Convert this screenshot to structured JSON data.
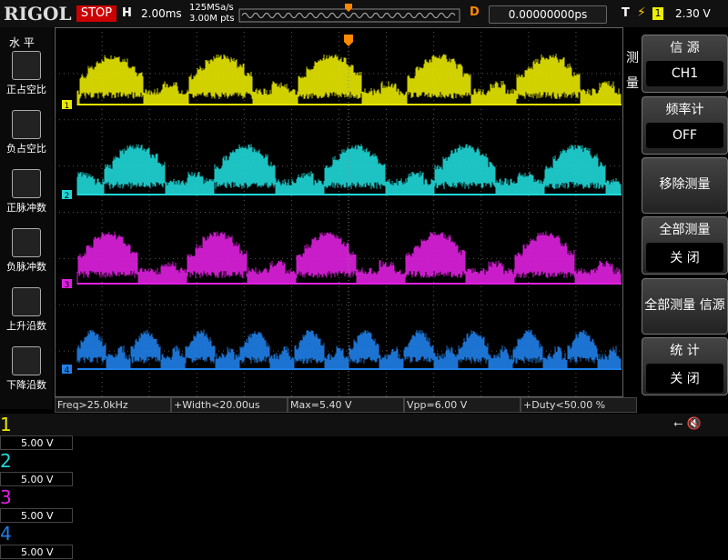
{
  "top_bar": {
    "logo": "RIGOL",
    "run_state": "STOP",
    "timebase_label": "H",
    "timebase": "2.00ms",
    "sample_rate": "125MSa/s",
    "memory_depth": "3.00M pts",
    "delay_label": "D",
    "delay": "0.00000000ps",
    "trigger_label": "T",
    "trigger_source": "1",
    "trigger_level": "2.30 V"
  },
  "left_menu": {
    "title": "水 平",
    "items": [
      "正占空比",
      "负占空比",
      "正脉冲数",
      "负脉冲数",
      "上升沿数",
      "下降沿数"
    ]
  },
  "right_menu": {
    "title": "测 量",
    "items": [
      {
        "label": "信 源",
        "value": "CH1"
      },
      {
        "label": "频率计",
        "value": "OFF"
      },
      {
        "label": "移除测量"
      },
      {
        "label": "全部测量",
        "value": "关 闭"
      },
      {
        "label": "全部测量 信源"
      },
      {
        "label": "统 计",
        "value": "关 闭"
      }
    ]
  },
  "measurements": [
    "Freq>25.0kHz",
    "+Width<20.00us",
    "Max=5.40 V",
    "Vpp=6.00 V",
    "+Duty<50.00 %"
  ],
  "channels": [
    {
      "label": "1",
      "scale": "5.00 V"
    },
    {
      "label": "2",
      "scale": "5.00 V"
    },
    {
      "label": "3",
      "scale": "5.00 V"
    },
    {
      "label": "4",
      "scale": "5.00 V"
    }
  ]
}
